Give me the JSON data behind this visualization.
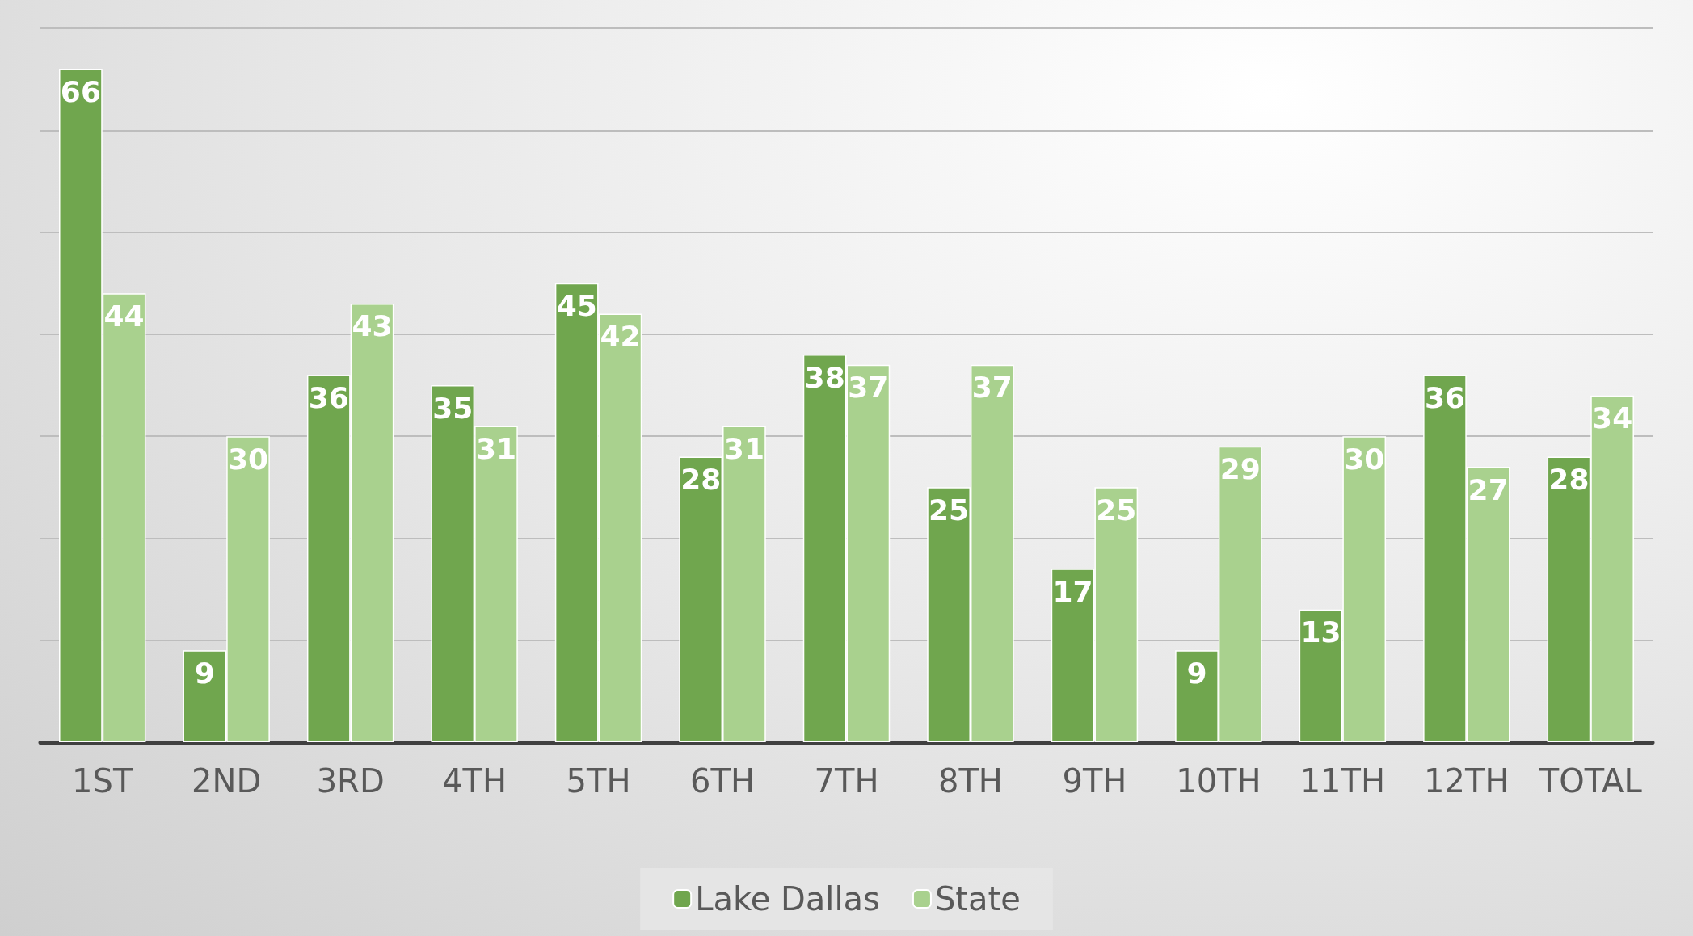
{
  "chart_data": {
    "type": "bar",
    "categories": [
      "1ST",
      "2ND",
      "3RD",
      "4TH",
      "5TH",
      "6TH",
      "7TH",
      "8TH",
      "9TH",
      "10TH",
      "11TH",
      "12TH",
      "TOTAL"
    ],
    "series": [
      {
        "name": "Lake Dallas",
        "color": "#70a64e",
        "values": [
          66,
          9,
          36,
          35,
          45,
          28,
          38,
          25,
          17,
          9,
          13,
          36,
          28
        ]
      },
      {
        "name": "State",
        "color": "#a9d18e",
        "values": [
          44,
          30,
          43,
          31,
          42,
          31,
          37,
          37,
          25,
          29,
          30,
          27,
          34
        ]
      }
    ],
    "ylim": [
      0,
      70
    ],
    "yticks": [
      {
        "value": 0,
        "label": null
      },
      {
        "value": 10,
        "label": null
      },
      {
        "value": 20,
        "label": null
      },
      {
        "value": 30,
        "label": null
      },
      {
        "value": 40,
        "label": null
      },
      {
        "value": 50,
        "label": null
      },
      {
        "value": 60,
        "label": null
      },
      {
        "value": 70,
        "label": null
      }
    ],
    "tick_labels": "x",
    "grid": "y",
    "legend": "bottom",
    "data_labels": true
  }
}
